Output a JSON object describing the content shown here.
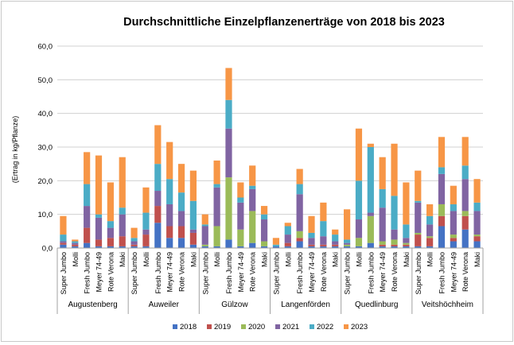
{
  "chart_data": {
    "type": "stacked-bar",
    "title": "Durchschnittliche Einzelpflanzenerträge von 2018 bis 2023",
    "ylabel": "(Ertrag in kg/Pflanze)",
    "ylim": [
      0,
      60
    ],
    "yticks": [
      "0,0",
      "10,0",
      "20,0",
      "30,0",
      "40,0",
      "50,0",
      "60,0"
    ],
    "ytick_values": [
      0,
      10,
      20,
      30,
      40,
      50,
      60
    ],
    "grid": true,
    "legend_position": "bottom",
    "varieties": [
      "Super Jumbo",
      "Molli",
      "Fresh Jumbo",
      "Meyer 74-49",
      "Rote Verona",
      "Maki"
    ],
    "locations": [
      "Augustenberg",
      "Auweiler",
      "Gülzow",
      "Langenförden",
      "Quedlinburg",
      "Veitshöchheim"
    ],
    "series": [
      {
        "name": "2018",
        "color": "#4472c4",
        "values": [
          1.0,
          0.5,
          1.5,
          0.5,
          0.5,
          0.5,
          0.5,
          0.5,
          7.5,
          3.0,
          3.0,
          1.0,
          0.5,
          0.5,
          2.5,
          0.5,
          1.5,
          0.5,
          0.5,
          0.5,
          2.0,
          0.5,
          0.5,
          0.5,
          0.5,
          0.5,
          1.5,
          0.5,
          0.5,
          0.5,
          0.5,
          0.5,
          6.5,
          2.0,
          5.5,
          2.0
        ]
      },
      {
        "name": "2019",
        "color": "#c0504d",
        "values": [
          0.5,
          0.5,
          4.5,
          2.0,
          2.5,
          3.0,
          0.5,
          3.5,
          5.0,
          3.5,
          3.5,
          3.5,
          0.0,
          0.0,
          0.0,
          0.0,
          0.0,
          0.0,
          0.0,
          1.0,
          1.0,
          0.5,
          0.5,
          0.5,
          0.0,
          0.0,
          0.0,
          0.5,
          0.5,
          0.5,
          3.5,
          2.5,
          3.0,
          1.0,
          4.0,
          1.5
        ]
      },
      {
        "name": "2020",
        "color": "#9bbb59",
        "values": [
          0.0,
          0.0,
          0.0,
          0.0,
          0.0,
          0.0,
          0.0,
          0.0,
          0.0,
          0.0,
          0.0,
          0.0,
          0.5,
          6.0,
          18.5,
          5.0,
          9.5,
          1.5,
          0.0,
          0.0,
          2.0,
          0.0,
          0.0,
          0.0,
          0.5,
          2.5,
          8.0,
          1.0,
          1.5,
          0.5,
          0.5,
          0.5,
          3.5,
          1.0,
          1.5,
          0.5
        ]
      },
      {
        "name": "2021",
        "color": "#8064a2",
        "values": [
          0.5,
          0.5,
          6.5,
          6.5,
          3.0,
          6.5,
          1.0,
          1.5,
          4.5,
          6.5,
          4.5,
          1.0,
          5.5,
          11.5,
          14.5,
          8.0,
          6.5,
          6.5,
          0.0,
          2.5,
          11.0,
          2.0,
          2.5,
          1.0,
          0.5,
          5.5,
          1.0,
          10.0,
          3.0,
          1.5,
          9.0,
          3.5,
          9.0,
          7.0,
          9.5,
          7.0
        ]
      },
      {
        "name": "2022",
        "color": "#4bacc6",
        "values": [
          2.0,
          0.5,
          6.5,
          1.0,
          2.0,
          2.0,
          1.0,
          5.0,
          8.0,
          7.5,
          5.5,
          8.5,
          0.5,
          1.0,
          8.5,
          1.5,
          1.0,
          1.5,
          0.5,
          2.5,
          3.0,
          1.5,
          4.5,
          2.0,
          1.0,
          11.5,
          19.5,
          5.5,
          10.0,
          4.0,
          0.5,
          2.5,
          2.0,
          2.0,
          4.0,
          2.5
        ]
      },
      {
        "name": "2023",
        "color": "#f79646",
        "values": [
          5.5,
          0.5,
          9.5,
          17.5,
          11.5,
          15.0,
          3.0,
          7.5,
          11.5,
          11.0,
          8.5,
          9.0,
          3.0,
          7.0,
          9.5,
          4.5,
          6.0,
          2.5,
          2.0,
          1.0,
          4.5,
          5.0,
          5.5,
          1.5,
          9.0,
          15.5,
          1.0,
          9.5,
          15.5,
          12.5,
          9.0,
          3.5,
          9.0,
          5.5,
          8.5,
          7.0
        ]
      }
    ]
  }
}
